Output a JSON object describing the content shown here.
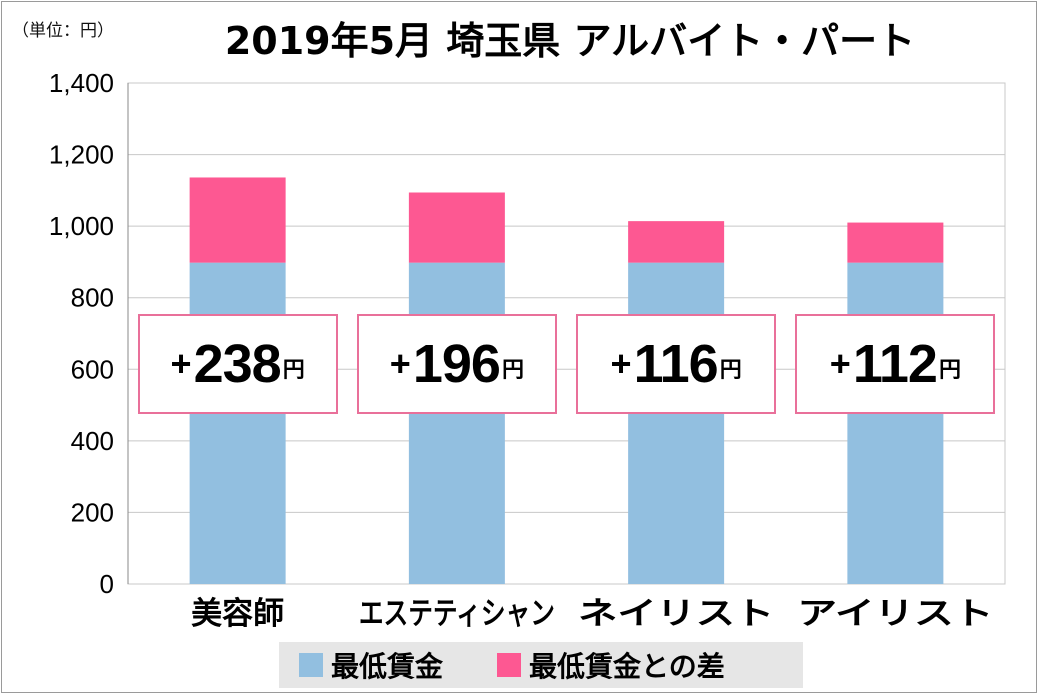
{
  "unit_label": "（単位：円）",
  "title": "2019年5月 埼玉県 アルバイト・パート",
  "colors": {
    "base": "#92bfe0",
    "diff": "#fd5892",
    "grid": "#c8c8c8",
    "box_border": "#e9709a"
  },
  "chart_data": {
    "type": "bar",
    "stacked": true,
    "title": "2019年5月 埼玉県 アルバイト・パート",
    "ylim": [
      0,
      1400
    ],
    "yticks": [
      "0",
      "200",
      "400",
      "600",
      "800",
      "1,000",
      "1,200",
      "1,400"
    ],
    "ytick_values": [
      0,
      200,
      400,
      600,
      800,
      1000,
      1200,
      1400
    ],
    "grid": true,
    "categories": [
      "美容師",
      "エステティシャン",
      "ネイリスト",
      "アイリスト"
    ],
    "series": [
      {
        "name": "最低賃金",
        "values": [
          898,
          898,
          898,
          898
        ]
      },
      {
        "name": "最低賃金との差",
        "values": [
          238,
          196,
          116,
          112
        ]
      }
    ],
    "annotations": [
      {
        "plus": "+",
        "value": "238",
        "unit": "円"
      },
      {
        "plus": "+",
        "value": "196",
        "unit": "円"
      },
      {
        "plus": "+",
        "value": "116",
        "unit": "円"
      },
      {
        "plus": "+",
        "value": "112",
        "unit": "円"
      }
    ],
    "legend_position": "bottom"
  }
}
